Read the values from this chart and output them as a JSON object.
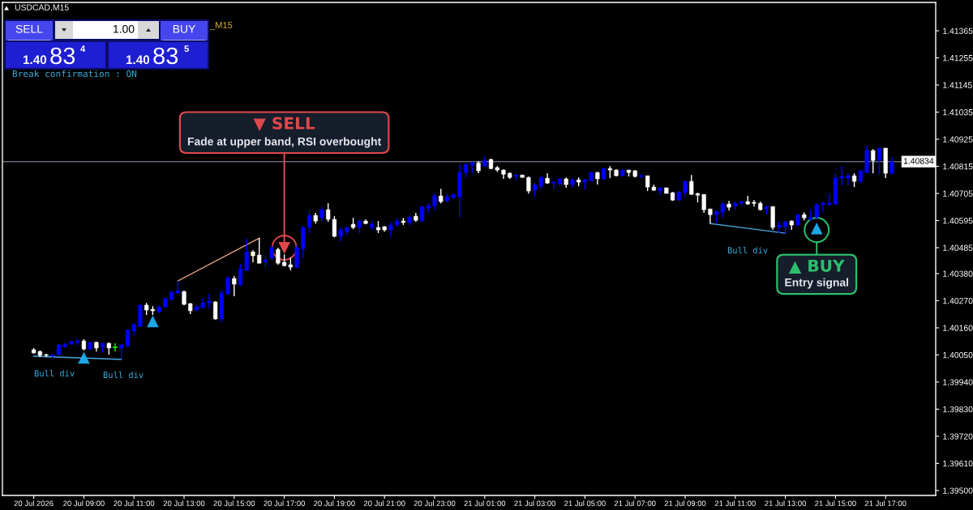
{
  "chart_data": {
    "type": "candlestick",
    "title": "USDCAD,M15",
    "x": [
      "2026-07-20T07:00",
      "2026-07-20T07:15",
      "2026-07-20T07:30",
      "2026-07-20T07:45",
      "2026-07-20T08:00",
      "2026-07-20T08:15",
      "2026-07-20T08:30",
      "2026-07-20T08:45",
      "2026-07-20T09:00",
      "2026-07-20T09:15",
      "2026-07-20T09:30",
      "2026-07-20T09:45",
      "2026-07-20T10:00",
      "2026-07-20T10:15",
      "2026-07-20T10:30",
      "2026-07-20T10:45",
      "2026-07-20T11:00",
      "2026-07-20T11:15",
      "2026-07-20T11:30",
      "2026-07-20T11:45",
      "2026-07-20T12:00",
      "2026-07-20T12:15",
      "2026-07-20T12:30",
      "2026-07-20T12:45",
      "2026-07-20T13:00",
      "2026-07-20T13:15",
      "2026-07-20T13:30",
      "2026-07-20T13:45",
      "2026-07-20T14:00",
      "2026-07-20T14:15",
      "2026-07-20T14:30",
      "2026-07-20T14:45",
      "2026-07-20T15:00",
      "2026-07-20T15:15",
      "2026-07-20T15:30",
      "2026-07-20T15:45",
      "2026-07-20T16:00",
      "2026-07-20T16:15",
      "2026-07-20T16:30",
      "2026-07-20T16:45",
      "2026-07-20T17:00",
      "2026-07-20T17:15",
      "2026-07-20T17:30",
      "2026-07-20T17:45",
      "2026-07-20T18:00",
      "2026-07-20T18:15",
      "2026-07-20T18:30",
      "2026-07-20T18:45",
      "2026-07-20T19:00",
      "2026-07-20T19:15",
      "2026-07-20T19:30",
      "2026-07-20T19:45",
      "2026-07-20T20:00",
      "2026-07-20T20:15",
      "2026-07-20T20:30",
      "2026-07-20T20:45",
      "2026-07-20T21:00",
      "2026-07-20T21:15",
      "2026-07-20T21:30",
      "2026-07-20T21:45",
      "2026-07-20T22:00",
      "2026-07-20T22:15",
      "2026-07-20T22:30",
      "2026-07-20T22:45",
      "2026-07-20T23:00",
      "2026-07-20T23:15",
      "2026-07-20T23:30",
      "2026-07-20T23:45",
      "2026-07-21T00:00",
      "2026-07-21T00:15",
      "2026-07-21T00:30",
      "2026-07-21T00:45",
      "2026-07-21T01:00",
      "2026-07-21T01:15",
      "2026-07-21T01:30",
      "2026-07-21T01:45",
      "2026-07-21T02:00",
      "2026-07-21T02:15",
      "2026-07-21T02:30",
      "2026-07-21T02:45",
      "2026-07-21T03:00",
      "2026-07-21T03:15",
      "2026-07-21T03:30",
      "2026-07-21T03:45",
      "2026-07-21T04:00",
      "2026-07-21T04:15",
      "2026-07-21T04:30",
      "2026-07-21T04:45",
      "2026-07-21T05:00",
      "2026-07-21T05:15",
      "2026-07-21T05:30",
      "2026-07-21T05:45",
      "2026-07-21T06:00",
      "2026-07-21T06:15",
      "2026-07-21T06:30",
      "2026-07-21T06:45",
      "2026-07-21T07:00",
      "2026-07-21T07:15",
      "2026-07-21T07:30",
      "2026-07-21T07:45",
      "2026-07-21T08:00",
      "2026-07-21T08:15",
      "2026-07-21T08:30",
      "2026-07-21T08:45",
      "2026-07-21T09:00",
      "2026-07-21T09:15",
      "2026-07-21T09:30",
      "2026-07-21T09:45",
      "2026-07-21T10:00",
      "2026-07-21T10:15",
      "2026-07-21T10:30",
      "2026-07-21T10:45",
      "2026-07-21T11:00",
      "2026-07-21T11:15",
      "2026-07-21T11:30",
      "2026-07-21T11:45",
      "2026-07-21T12:00",
      "2026-07-21T12:15",
      "2026-07-21T12:30",
      "2026-07-21T12:45",
      "2026-07-21T13:00",
      "2026-07-21T13:15",
      "2026-07-21T13:30",
      "2026-07-21T13:45",
      "2026-07-21T14:00",
      "2026-07-21T14:15",
      "2026-07-21T14:30",
      "2026-07-21T14:45",
      "2026-07-21T15:00",
      "2026-07-21T15:15",
      "2026-07-21T15:30",
      "2026-07-21T15:45",
      "2026-07-21T16:00",
      "2026-07-21T16:15",
      "2026-07-21T16:30",
      "2026-07-21T16:45",
      "2026-07-21T17:00",
      "2026-07-21T17:15"
    ],
    "ohlc": [
      [
        1.40071,
        1.40078,
        1.40055,
        1.40058
      ],
      [
        1.40064,
        1.40068,
        1.40041,
        1.40048
      ],
      [
        1.40051,
        1.40055,
        1.40041,
        1.40048
      ],
      [
        1.40045,
        1.40051,
        1.40041,
        1.40051
      ],
      [
        1.40051,
        1.40094,
        1.40048,
        1.40091
      ],
      [
        1.40084,
        1.40097,
        1.40078,
        1.40094
      ],
      [
        1.40094,
        1.40107,
        1.40091,
        1.40104
      ],
      [
        1.40101,
        1.40114,
        1.40091,
        1.40107
      ],
      [
        1.40107,
        1.40114,
        1.40068,
        1.40074
      ],
      [
        1.40074,
        1.40104,
        1.40068,
        1.40101
      ],
      [
        1.40101,
        1.40104,
        1.40064,
        1.40078
      ],
      [
        1.40081,
        1.40101,
        1.40058,
        1.40097
      ],
      [
        1.40097,
        1.40101,
        1.40051,
        1.40078
      ],
      [
        1.40081,
        1.40097,
        1.40064,
        1.40081
      ],
      [
        1.40078,
        1.40091,
        1.40032,
        1.40091
      ],
      [
        1.40087,
        1.40156,
        1.40081,
        1.4015
      ],
      [
        1.40147,
        1.40179,
        1.4013,
        1.40173
      ],
      [
        1.40166,
        1.40255,
        1.40163,
        1.40252
      ],
      [
        1.40252,
        1.40261,
        1.40212,
        1.40232
      ],
      [
        1.40235,
        1.40248,
        1.40212,
        1.40229
      ],
      [
        1.40225,
        1.40252,
        1.40219,
        1.40245
      ],
      [
        1.40245,
        1.40284,
        1.40242,
        1.40278
      ],
      [
        1.40275,
        1.40311,
        1.40271,
        1.40304
      ],
      [
        1.40301,
        1.4035,
        1.40298,
        1.40311
      ],
      [
        1.40307,
        1.40311,
        1.40252,
        1.40255
      ],
      [
        1.40258,
        1.40261,
        1.40216,
        1.40229
      ],
      [
        1.40232,
        1.40252,
        1.40229,
        1.40245
      ],
      [
        1.40242,
        1.40281,
        1.40239,
        1.40261
      ],
      [
        1.40261,
        1.40298,
        1.40239,
        1.40268
      ],
      [
        1.40265,
        1.40268,
        1.40193,
        1.40196
      ],
      [
        1.40196,
        1.40314,
        1.40183,
        1.40301
      ],
      [
        1.40298,
        1.4037,
        1.40294,
        1.40363
      ],
      [
        1.4036,
        1.4037,
        1.40288,
        1.40337
      ],
      [
        1.40334,
        1.40419,
        1.4033,
        1.40399
      ],
      [
        1.40393,
        1.40524,
        1.4039,
        1.40468
      ],
      [
        1.40468,
        1.40475,
        1.40426,
        1.40452
      ],
      [
        1.40455,
        1.40524,
        1.40422,
        1.40422
      ],
      [
        1.40426,
        1.40455,
        1.40406,
        1.40435
      ],
      [
        1.40442,
        1.40495,
        1.40435,
        1.40485
      ],
      [
        1.40478,
        1.40485,
        1.40416,
        1.40422
      ],
      [
        1.40426,
        1.40458,
        1.40409,
        1.40412
      ],
      [
        1.40416,
        1.40445,
        1.40393,
        1.40406
      ],
      [
        1.40406,
        1.40495,
        1.40399,
        1.40485
      ],
      [
        1.40481,
        1.40573,
        1.40445,
        1.40567
      ],
      [
        1.40567,
        1.40639,
        1.40544,
        1.40616
      ],
      [
        1.40616,
        1.40626,
        1.40583,
        1.40593
      ],
      [
        1.40606,
        1.40649,
        1.40593,
        1.40639
      ],
      [
        1.40639,
        1.40665,
        1.4059,
        1.406
      ],
      [
        1.406,
        1.40613,
        1.40527,
        1.40531
      ],
      [
        1.40531,
        1.40567,
        1.40511,
        1.40557
      ],
      [
        1.4055,
        1.4057,
        1.40537,
        1.40567
      ],
      [
        1.4058,
        1.40606,
        1.4056,
        1.40567
      ],
      [
        1.40567,
        1.406,
        1.40544,
        1.40593
      ],
      [
        1.40593,
        1.406,
        1.4058,
        1.40583
      ],
      [
        1.40567,
        1.40593,
        1.40557,
        1.4058
      ],
      [
        1.40567,
        1.40593,
        1.40544,
        1.40557
      ],
      [
        1.4057,
        1.40573,
        1.4055,
        1.40557
      ],
      [
        1.40557,
        1.4059,
        1.40531,
        1.40577
      ],
      [
        1.40577,
        1.40606,
        1.4057,
        1.40593
      ],
      [
        1.40593,
        1.40606,
        1.40577,
        1.40587
      ],
      [
        1.40587,
        1.40616,
        1.40577,
        1.40609
      ],
      [
        1.40613,
        1.40626,
        1.4059,
        1.40596
      ],
      [
        1.40593,
        1.40655,
        1.4059,
        1.40652
      ],
      [
        1.40646,
        1.40665,
        1.40629,
        1.40655
      ],
      [
        1.40655,
        1.40705,
        1.40636,
        1.40695
      ],
      [
        1.40695,
        1.40724,
        1.40665,
        1.40672
      ],
      [
        1.40675,
        1.40705,
        1.40669,
        1.40692
      ],
      [
        1.40688,
        1.40705,
        1.40682,
        1.40701
      ],
      [
        1.40692,
        1.40823,
        1.40609,
        1.4079
      ],
      [
        1.4079,
        1.40826,
        1.4077,
        1.40823
      ],
      [
        1.4082,
        1.40836,
        1.40787,
        1.40829
      ],
      [
        1.40829,
        1.40836,
        1.40787,
        1.40797
      ],
      [
        1.40816,
        1.40856,
        1.40813,
        1.40839
      ],
      [
        1.40843,
        1.40846,
        1.40803,
        1.40806
      ],
      [
        1.4081,
        1.40816,
        1.40793,
        1.408
      ],
      [
        1.408,
        1.40803,
        1.40764,
        1.40783
      ],
      [
        1.40787,
        1.4079,
        1.40764,
        1.4077
      ],
      [
        1.40774,
        1.40783,
        1.40757,
        1.4078
      ],
      [
        1.4078,
        1.4078,
        1.4077,
        1.4077
      ],
      [
        1.4077,
        1.40774,
        1.40705,
        1.40715
      ],
      [
        1.40718,
        1.40747,
        1.40695,
        1.40741
      ],
      [
        1.40734,
        1.40774,
        1.40724,
        1.4077
      ],
      [
        1.40767,
        1.40787,
        1.40744,
        1.40747
      ],
      [
        1.40747,
        1.40754,
        1.40721,
        1.40751
      ],
      [
        1.40744,
        1.40767,
        1.40737,
        1.40764
      ],
      [
        1.40764,
        1.4077,
        1.40728,
        1.40741
      ],
      [
        1.40741,
        1.40767,
        1.40728,
        1.4076
      ],
      [
        1.4076,
        1.4077,
        1.40734,
        1.40751
      ],
      [
        1.40751,
        1.40764,
        1.40721,
        1.4076
      ],
      [
        1.40757,
        1.40793,
        1.40754,
        1.4079
      ],
      [
        1.4079,
        1.40793,
        1.40741,
        1.40764
      ],
      [
        1.40764,
        1.4081,
        1.4076,
        1.40806
      ],
      [
        1.40806,
        1.40816,
        1.40767,
        1.408
      ],
      [
        1.408,
        1.40803,
        1.40774,
        1.40777
      ],
      [
        1.40777,
        1.40803,
        1.40774,
        1.408
      ],
      [
        1.408,
        1.408,
        1.40774,
        1.4079
      ],
      [
        1.40797,
        1.408,
        1.4077,
        1.40774
      ],
      [
        1.40774,
        1.40783,
        1.40767,
        1.40777
      ],
      [
        1.40777,
        1.40777,
        1.40715,
        1.40731
      ],
      [
        1.40731,
        1.40741,
        1.40715,
        1.40718
      ],
      [
        1.40715,
        1.40731,
        1.40701,
        1.40728
      ],
      [
        1.40728,
        1.40728,
        1.40705,
        1.40705
      ],
      [
        1.40708,
        1.40711,
        1.40675,
        1.40678
      ],
      [
        1.40678,
        1.40715,
        1.40675,
        1.40711
      ],
      [
        1.40708,
        1.40757,
        1.40688,
        1.40754
      ],
      [
        1.40754,
        1.4078,
        1.40701,
        1.40701
      ],
      [
        1.40705,
        1.40708,
        1.40669,
        1.40698
      ],
      [
        1.40701,
        1.40701,
        1.40626,
        1.40639
      ],
      [
        1.40642,
        1.40642,
        1.40583,
        1.40619
      ],
      [
        1.40619,
        1.40636,
        1.40587,
        1.40632
      ],
      [
        1.40629,
        1.40669,
        1.40606,
        1.40662
      ],
      [
        1.40662,
        1.40675,
        1.40636,
        1.40649
      ],
      [
        1.40655,
        1.40672,
        1.40639,
        1.40665
      ],
      [
        1.40665,
        1.40675,
        1.40655,
        1.40672
      ],
      [
        1.40672,
        1.40695,
        1.40659,
        1.40662
      ],
      [
        1.40669,
        1.40678,
        1.40652,
        1.40665
      ],
      [
        1.40665,
        1.40672,
        1.40636,
        1.40639
      ],
      [
        1.40642,
        1.40655,
        1.40623,
        1.40652
      ],
      [
        1.40652,
        1.40652,
        1.40557,
        1.40567
      ],
      [
        1.40567,
        1.40593,
        1.40544,
        1.40577
      ],
      [
        1.4057,
        1.40593,
        1.40544,
        1.4059
      ],
      [
        1.40593,
        1.40596,
        1.40557,
        1.40577
      ],
      [
        1.40577,
        1.40623,
        1.4057,
        1.40619
      ],
      [
        1.40619,
        1.40629,
        1.40596,
        1.40606
      ],
      [
        1.406,
        1.40639,
        1.40593,
        1.40609
      ],
      [
        1.40609,
        1.40665,
        1.406,
        1.40659
      ],
      [
        1.40659,
        1.40672,
        1.40629,
        1.40665
      ],
      [
        1.40659,
        1.40705,
        1.40655,
        1.40665
      ],
      [
        1.40662,
        1.40787,
        1.40659,
        1.40767
      ],
      [
        1.40767,
        1.40816,
        1.40737,
        1.40774
      ],
      [
        1.40767,
        1.40787,
        1.40737,
        1.40777
      ],
      [
        1.40777,
        1.40787,
        1.40731,
        1.40754
      ],
      [
        1.40754,
        1.408,
        1.40747,
        1.40797
      ],
      [
        1.4079,
        1.40898,
        1.40787,
        1.40879
      ],
      [
        1.40879,
        1.40885,
        1.40787,
        1.40839
      ],
      [
        1.40839,
        1.40889,
        1.4078,
        1.40889
      ],
      [
        1.40889,
        1.40889,
        1.40767,
        1.40787
      ],
      [
        1.40787,
        1.40852,
        1.40783,
        1.40834
      ]
    ],
    "colors": [
      "#ffffff",
      "#ffffff",
      "#ffffff",
      "#0000ff",
      "#0000ff",
      "#0000ff",
      "#0000ff",
      "#0000ff",
      "#ffffff",
      "#0000ff",
      "#ffffff",
      "#0000ff",
      "#ffffff",
      "#00ff00",
      "#0000ff",
      "#0000ff",
      "#0000ff",
      "#0000ff",
      "#ffffff",
      "#ffffff",
      "#0000ff",
      "#0000ff",
      "#0000ff",
      "#0000ff",
      "#ffffff",
      "#ffffff",
      "#0000ff",
      "#0000ff",
      "#0000ff",
      "#ffffff",
      "#0000ff",
      "#0000ff",
      "#ffffff",
      "#0000ff",
      "#0000ff",
      "#ffffff",
      "#ffffff",
      "#0000ff",
      "#0000ff",
      "#ffffff",
      "#ffffff",
      "#ffffff",
      "#0000ff",
      "#0000ff",
      "#0000ff",
      "#ffffff",
      "#0000ff",
      "#ffffff",
      "#ffffff",
      "#0000ff",
      "#0000ff",
      "#ffffff",
      "#0000ff",
      "#ffffff",
      "#0000ff",
      "#ffffff",
      "#ffffff",
      "#0000ff",
      "#0000ff",
      "#ffffff",
      "#0000ff",
      "#ffffff",
      "#0000ff",
      "#0000ff",
      "#0000ff",
      "#ffffff",
      "#0000ff",
      "#0000ff",
      "#0000ff",
      "#0000ff",
      "#0000ff",
      "#ffffff",
      "#0000ff",
      "#ffffff",
      "#ffffff",
      "#ffffff",
      "#ffffff",
      "#0000ff",
      "#ffffff",
      "#ffffff",
      "#0000ff",
      "#0000ff",
      "#ffffff",
      "#0000ff",
      "#0000ff",
      "#ffffff",
      "#0000ff",
      "#ffffff",
      "#0000ff",
      "#0000ff",
      "#ffffff",
      "#0000ff",
      "#ffffff",
      "#ffffff",
      "#0000ff",
      "#ffffff",
      "#ffffff",
      "#0000ff",
      "#ffffff",
      "#ffffff",
      "#0000ff",
      "#ffffff",
      "#ffffff",
      "#0000ff",
      "#0000ff",
      "#ffffff",
      "#ffffff",
      "#ffffff",
      "#ffffff",
      "#0000ff",
      "#0000ff",
      "#ffffff",
      "#0000ff",
      "#0000ff",
      "#ffffff",
      "#ffffff",
      "#ffffff",
      "#0000ff",
      "#ffffff",
      "#0000ff",
      "#0000ff",
      "#ffffff",
      "#0000ff",
      "#ffffff",
      "#0000ff",
      "#0000ff",
      "#0000ff",
      "#0000ff",
      "#0000ff",
      "#0000ff",
      "#0000ff",
      "#ffffff",
      "#0000ff",
      "#0000ff",
      "#ffffff",
      "#0000ff",
      "#ffffff",
      "#0000ff"
    ],
    "xlim": [
      "2026-07-20T05:45",
      "2026-07-21T19:00"
    ],
    "xticks": [
      {
        "value": "2026-07-20T07:00",
        "label": "20 Jul 2026"
      },
      {
        "value": "2026-07-20T09:00",
        "label": "20 Jul 09:00"
      },
      {
        "value": "2026-07-20T11:00",
        "label": "20 Jul 11:00"
      },
      {
        "value": "2026-07-20T13:00",
        "label": "20 Jul 13:00"
      },
      {
        "value": "2026-07-20T15:00",
        "label": "20 Jul 15:00"
      },
      {
        "value": "2026-07-20T17:00",
        "label": "20 Jul 17:00"
      },
      {
        "value": "2026-07-20T19:00",
        "label": "20 Jul 19:00"
      },
      {
        "value": "2026-07-20T21:00",
        "label": "20 Jul 21:00"
      },
      {
        "value": "2026-07-20T23:00",
        "label": "20 Jul 23:00"
      },
      {
        "value": "2026-07-21T01:00",
        "label": "21 Jul 01:00"
      },
      {
        "value": "2026-07-21T03:00",
        "label": "21 Jul 03:00"
      },
      {
        "value": "2026-07-21T05:00",
        "label": "21 Jul 05:00"
      },
      {
        "value": "2026-07-21T07:00",
        "label": "21 Jul 07:00"
      },
      {
        "value": "2026-07-21T09:00",
        "label": "21 Jul 09:00"
      },
      {
        "value": "2026-07-21T11:00",
        "label": "21 Jul 11:00"
      },
      {
        "value": "2026-07-21T13:00",
        "label": "21 Jul 13:00"
      },
      {
        "value": "2026-07-21T15:00",
        "label": "21 Jul 15:00"
      },
      {
        "value": "2026-07-21T17:00",
        "label": "21 Jul 17:00"
      }
    ],
    "ylim": [
      1.3948,
      1.4148
    ],
    "yticks": [
      1.41365,
      1.41255,
      1.41145,
      1.41035,
      1.40925,
      1.40815,
      1.40705,
      1.40595,
      1.40485,
      {
        "value": 1.4038,
        "label": "1.40380"
      },
      {
        "value": 1.4027,
        "label": "1.40270"
      },
      {
        "value": 1.4016,
        "label": "1.40160"
      },
      {
        "value": 1.4005,
        "label": "1.40050"
      },
      {
        "value": 1.3994,
        "label": "1.39940"
      },
      {
        "value": 1.3983,
        "label": "1.39830"
      },
      {
        "value": 1.3972,
        "label": "1.39720"
      },
      {
        "value": 1.3961,
        "label": "1.39610"
      },
      {
        "value": 1.395,
        "label": "1.39500"
      }
    ],
    "ref_lines": [
      {
        "axis": "y",
        "value": 1.40834,
        "label": "1.40834",
        "color": "#8c96a8"
      }
    ],
    "series": [
      {
        "type": "line",
        "color": "#4aa8e0",
        "x": [
          "2026-07-20T07:00",
          "2026-07-20T10:30"
        ],
        "values": [
          1.40045,
          1.40032
        ]
      },
      {
        "type": "line",
        "color": "#e8a080",
        "x": [
          "2026-07-20T12:45",
          "2026-07-20T16:00"
        ],
        "values": [
          1.4035,
          1.40524
        ]
      },
      {
        "type": "line",
        "color": "#4aa8e0",
        "x": [
          "2026-07-21T10:00",
          "2026-07-21T13:00"
        ],
        "values": [
          1.40583,
          1.40544
        ]
      },
      {
        "type": "scatter",
        "color": "#1fa6e6",
        "marker": "triangle",
        "x": [
          "2026-07-20T09:00",
          "2026-07-20T11:45",
          "2026-07-21T14:15"
        ],
        "values": [
          1.40038,
          1.40186,
          1.40563
        ]
      }
    ],
    "annotations": [
      "SELL",
      "1.00",
      "BUY",
      "1.40",
      "83",
      "4",
      "1.40",
      "83",
      "5",
      "_M15",
      "Break confirmation : ON",
      "Bull div",
      "Bull div",
      "Bull div",
      "▼ SELL",
      {
        "text": "Fade at upper band, RSI overbought",
        "x": "2026-07-20T17:00",
        "y": 1.40485
      },
      {
        "text": "▲ BUY",
        "x": "2026-07-21T14:15",
        "y": 1.40557
      },
      "Entry signal"
    ]
  }
}
